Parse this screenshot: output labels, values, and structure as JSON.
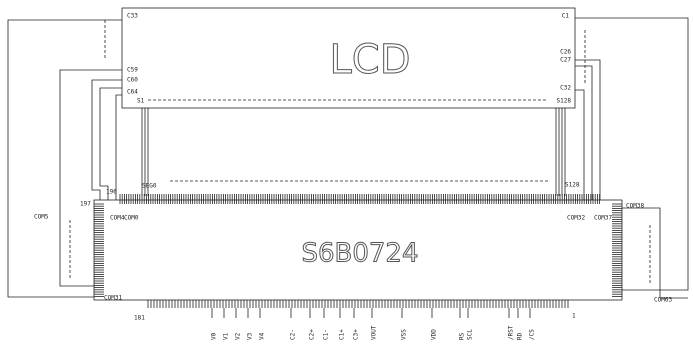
{
  "lcd": {
    "title": "LCD",
    "corner_labels": [
      "C33",
      "C1"
    ],
    "left_labels": [
      "C59",
      "C60",
      "C64",
      "S1"
    ],
    "right_labels": [
      "C26",
      "C27",
      "C32",
      "S128"
    ]
  },
  "chip": {
    "title": "S6B0724",
    "top_labels": [
      "COM4",
      "COM0",
      "SEG0",
      "S128",
      "COM32",
      "COM37"
    ],
    "side_labels": [
      "COM5",
      "COM31",
      "COM38",
      "COM63"
    ],
    "pin_numbers": [
      "196",
      "197",
      "181",
      "1"
    ],
    "bottom_pins": [
      "V0",
      "V1",
      "V2",
      "V3",
      "V4",
      "C2-",
      "C2+",
      "C1-",
      "C1+",
      "C3+",
      "VOUT",
      "VSS",
      "VDD",
      "RS",
      "SCL",
      "/RST",
      "RD",
      "/CS"
    ]
  }
}
